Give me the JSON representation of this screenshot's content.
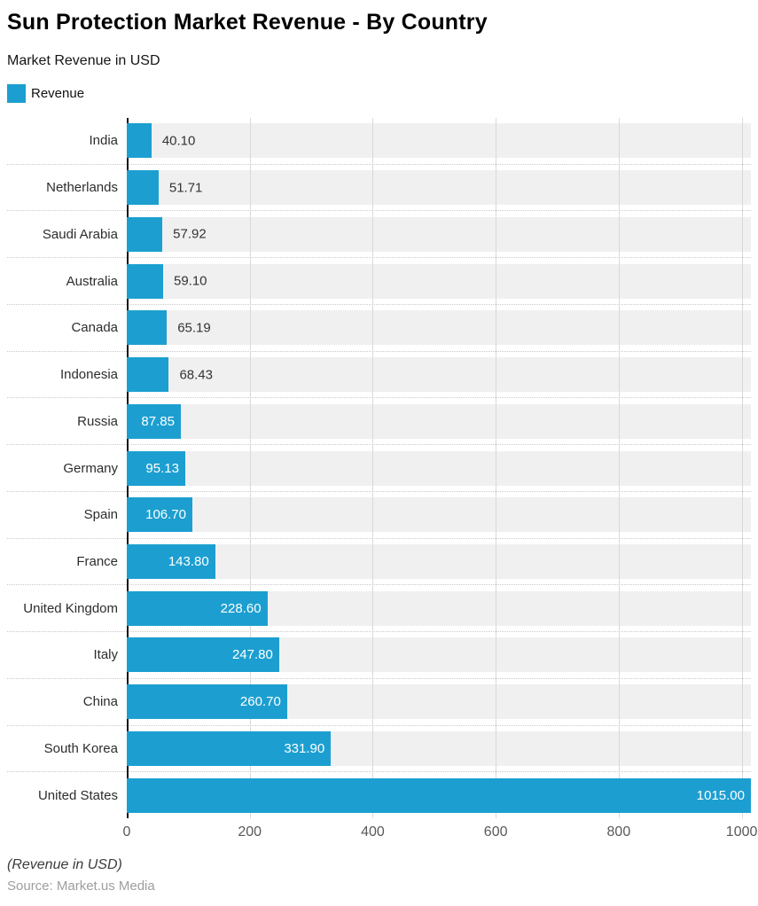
{
  "chart_data": {
    "type": "bar",
    "orientation": "horizontal",
    "title": "Sun Protection Market Revenue - By Country",
    "subtitle": "Market Revenue in USD",
    "legend": [
      {
        "label": "Revenue",
        "color": "#1C9FD0"
      }
    ],
    "xlabel": "",
    "ylabel": "",
    "xlim": [
      0,
      1015
    ],
    "x_ticks": [
      0,
      200,
      400,
      600,
      800,
      1000
    ],
    "grid": true,
    "categories": [
      "India",
      "Netherlands",
      "Saudi Arabia",
      "Australia",
      "Canada",
      "Indonesia",
      "Russia",
      "Germany",
      "Spain",
      "France",
      "United Kingdom",
      "Italy",
      "China",
      "South Korea",
      "United States"
    ],
    "values": [
      40.1,
      51.71,
      57.92,
      59.1,
      65.19,
      68.43,
      87.85,
      95.13,
      106.7,
      143.8,
      228.6,
      247.8,
      260.7,
      331.9,
      1015.0
    ],
    "value_labels": [
      "40.10",
      "51.71",
      "57.92",
      "59.10",
      "65.19",
      "68.43",
      "87.85",
      "95.13",
      "106.70",
      "143.80",
      "228.60",
      "247.80",
      "260.70",
      "331.90",
      "1015.00"
    ],
    "value_label_positions": [
      "outside",
      "outside",
      "outside",
      "outside",
      "outside",
      "outside",
      "inside",
      "inside",
      "inside",
      "inside",
      "inside",
      "inside",
      "inside",
      "inside",
      "inside"
    ]
  },
  "footer": {
    "note": "(Revenue in USD)",
    "source": "Source: Market.us Media"
  },
  "colors": {
    "bar": "#1C9FD0",
    "track": "#F0F0F0",
    "gridline": "#D9D9D9",
    "axis_line": "#161616",
    "value_inside_text": "#FFFFFF",
    "value_outside_text": "#333333",
    "title_text": "#000000",
    "tick_text": "#595959",
    "source_text": "#9E9E9E"
  }
}
